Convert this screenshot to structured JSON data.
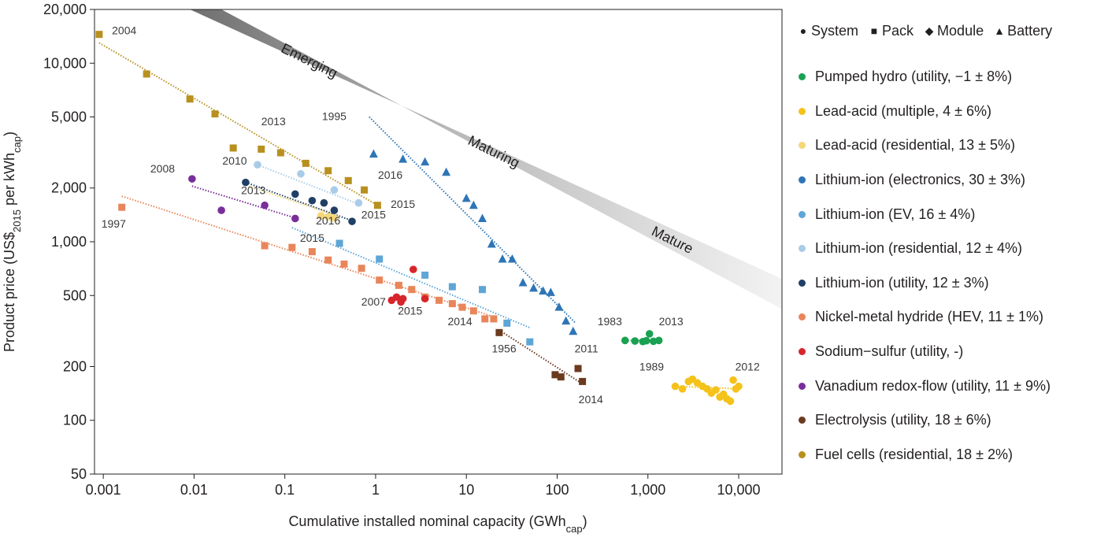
{
  "chart_data": {
    "type": "scatter",
    "xlabel": "Cumulative installed nominal capacity (GWh",
    "xlabel_sub": "cap",
    "xlabel_end": ")",
    "ylabel": "Product price (US$",
    "ylabel_sub1": "2015",
    "ylabel_mid": " per kWh",
    "ylabel_sub2": "cap",
    "ylabel_end": ")",
    "x_scale": "log",
    "y_scale": "log",
    "xlim": [
      0.0008,
      30000
    ],
    "ylim": [
      50,
      20000
    ],
    "x_ticks": [
      {
        "value": 0.001,
        "label": "0.001"
      },
      {
        "value": 0.01,
        "label": "0.01"
      },
      {
        "value": 0.1,
        "label": "0.1"
      },
      {
        "value": 1,
        "label": "1"
      },
      {
        "value": 10,
        "label": "10"
      },
      {
        "value": 100,
        "label": "100"
      },
      {
        "value": 1000,
        "label": "1,000"
      },
      {
        "value": 10000,
        "label": "10,000"
      }
    ],
    "y_ticks": [
      {
        "value": 50,
        "label": "50"
      },
      {
        "value": 100,
        "label": "100"
      },
      {
        "value": 200,
        "label": "200"
      },
      {
        "value": 500,
        "label": "500"
      },
      {
        "value": 1000,
        "label": "1,000"
      },
      {
        "value": 2000,
        "label": "2,000"
      },
      {
        "value": 5000,
        "label": "5,000"
      },
      {
        "value": 10000,
        "label": "10,000"
      },
      {
        "value": 20000,
        "label": "20,000"
      }
    ],
    "grid": false,
    "legend_position": "right",
    "marker_legend": [
      {
        "shape": "circle",
        "label": "System"
      },
      {
        "shape": "square",
        "label": "Pack"
      },
      {
        "shape": "diamond",
        "label": "Module"
      },
      {
        "shape": "triangle",
        "label": "Battery"
      }
    ],
    "maturity_band": {
      "labels": [
        "Emerging",
        "Maturing",
        "Mature"
      ],
      "upper_edge": [
        [
          0.009,
          20000
        ],
        [
          30000,
          620
        ]
      ],
      "lower_edge": [
        [
          0.02,
          20000
        ],
        [
          30000,
          420
        ]
      ]
    },
    "series": [
      {
        "name": "Pumped hydro (utility, −1 ± 8%)",
        "color": "#1aa152",
        "marker": "circle",
        "x": [
          560,
          720,
          880,
          960,
          1040,
          1150,
          1320
        ],
        "y": [
          280,
          278,
          276,
          279,
          305,
          277,
          280
        ],
        "trend": [
          [
            560,
            280
          ],
          [
            1350,
            280
          ]
        ]
      },
      {
        "name": "Lead-acid (multiple, 4 ± 6%)",
        "color": "#f5c21a",
        "marker": "circle",
        "x": [
          2000,
          2400,
          2800,
          3100,
          3500,
          4000,
          4500,
          5000,
          5600,
          6200,
          6800,
          7400,
          8100,
          8700,
          9300,
          10000
        ],
        "y": [
          155,
          150,
          165,
          170,
          162,
          155,
          150,
          142,
          148,
          135,
          140,
          132,
          128,
          168,
          150,
          155
        ],
        "trend": [
          [
            2000,
            155
          ],
          [
            10000,
            150
          ]
        ]
      },
      {
        "name": "Lead-acid (residential, 13 ± 5%)",
        "color": "#f5d77a",
        "marker": "circle",
        "x": [
          0.25,
          0.3,
          0.35
        ],
        "y": [
          1400,
          1380,
          1360
        ],
        "trend": [
          [
            0.04,
            2050
          ],
          [
            0.4,
            1380
          ]
        ]
      },
      {
        "name": "Lithium-ion (electronics, 30 ± 3%)",
        "color": "#2e75b6",
        "marker": "triangle",
        "x": [
          0.95,
          2,
          3.5,
          6,
          10,
          12,
          15,
          19,
          25,
          32,
          42,
          55,
          70,
          85,
          105,
          125,
          150
        ],
        "y": [
          3100,
          2900,
          2800,
          2450,
          1750,
          1600,
          1350,
          970,
          800,
          800,
          590,
          550,
          530,
          520,
          430,
          360,
          315
        ],
        "trend": [
          [
            0.85,
            5000
          ],
          [
            160,
            350
          ]
        ]
      },
      {
        "name": "Lithium-ion (EV, 16 ± 4%)",
        "color": "#5ea6d6",
        "marker": "square",
        "x": [
          0.4,
          1.1,
          3.5,
          7,
          15,
          28,
          50
        ],
        "y": [
          980,
          800,
          650,
          560,
          540,
          350,
          275
        ],
        "trend": [
          [
            0.12,
            1200
          ],
          [
            50,
            330
          ]
        ]
      },
      {
        "name": "Lithium-ion (residential, 12 ± 4%)",
        "color": "#a9cce8",
        "marker": "circle",
        "x": [
          0.05,
          0.15,
          0.35,
          0.65
        ],
        "y": [
          2700,
          2400,
          1950,
          1650
        ],
        "trend": [
          [
            0.05,
            2700
          ],
          [
            0.7,
            1600
          ]
        ]
      },
      {
        "name": "Lithium-ion (utility, 12 ± 3%)",
        "color": "#1f3f66",
        "marker": "circle",
        "x": [
          0.037,
          0.13,
          0.2,
          0.27,
          0.35,
          0.55
        ],
        "y": [
          2150,
          1850,
          1700,
          1650,
          1500,
          1300
        ],
        "trend": [
          [
            0.037,
            2150
          ],
          [
            0.58,
            1300
          ]
        ]
      },
      {
        "name": "Nickel-metal hydride (HEV, 11 ± 1%)",
        "color": "#e8865a",
        "marker": "square",
        "x": [
          0.0016,
          0.06,
          0.12,
          0.2,
          0.3,
          0.45,
          0.7,
          1.1,
          1.8,
          2.5,
          3.5,
          5,
          7,
          9,
          12,
          16,
          20
        ],
        "y": [
          1560,
          950,
          930,
          880,
          790,
          750,
          710,
          610,
          570,
          540,
          490,
          470,
          450,
          430,
          410,
          370,
          370
        ],
        "trend": [
          [
            0.0016,
            1800
          ],
          [
            20,
            380
          ]
        ]
      },
      {
        "name": "Sodium−sulfur (utility, -)",
        "color": "#d7262b",
        "marker": "circle",
        "x": [
          1.5,
          1.7,
          1.9,
          2.0,
          2.6,
          3.5
        ],
        "y": [
          470,
          490,
          460,
          480,
          700,
          480
        ],
        "trend": []
      },
      {
        "name": "Vanadium redox-flow (utility, 11 ± 9%)",
        "color": "#7a2e9a",
        "marker": "circle",
        "x": [
          0.0095,
          0.02,
          0.06,
          0.13
        ],
        "y": [
          2250,
          1500,
          1600,
          1350
        ],
        "trend": [
          [
            0.0095,
            2050
          ],
          [
            0.13,
            1360
          ]
        ]
      },
      {
        "name": "Electrolysis (utility, 18 ± 6%)",
        "color": "#6b3a1f",
        "marker": "square",
        "x": [
          23,
          95,
          110,
          170,
          190
        ],
        "y": [
          310,
          180,
          175,
          195,
          165
        ],
        "trend": [
          [
            23,
            320
          ],
          [
            190,
            160
          ]
        ]
      },
      {
        "name": "Fuel cells (residential, 18 ± 2%)",
        "color": "#b8901f",
        "marker": "square",
        "x": [
          0.0009,
          0.003,
          0.009,
          0.017,
          0.027,
          0.055,
          0.09,
          0.17,
          0.3,
          0.5,
          0.75,
          1.05
        ],
        "y": [
          14500,
          8700,
          6300,
          5200,
          3350,
          3300,
          3150,
          2750,
          2500,
          2200,
          1950,
          1600
        ],
        "trend": [
          [
            0.0009,
            13000
          ],
          [
            1.05,
            1600
          ]
        ]
      }
    ],
    "annotations": [
      {
        "text": "2004",
        "x": 0.0017,
        "y": 14500
      },
      {
        "text": "2013",
        "x": 0.075,
        "y": 4500
      },
      {
        "text": "2008",
        "x": 0.0045,
        "y": 2450
      },
      {
        "text": "2010",
        "x": 0.028,
        "y": 2700
      },
      {
        "text": "2013",
        "x": 0.045,
        "y": 1850
      },
      {
        "text": "2016",
        "x": 1.45,
        "y": 2250
      },
      {
        "text": "2015",
        "x": 2.0,
        "y": 1550
      },
      {
        "text": "2016",
        "x": 0.3,
        "y": 1250
      },
      {
        "text": "2015",
        "x": 0.95,
        "y": 1350
      },
      {
        "text": "2015",
        "x": 0.2,
        "y": 1000
      },
      {
        "text": "1997",
        "x": 0.0013,
        "y": 1200
      },
      {
        "text": "1995",
        "x": 0.35,
        "y": 4800
      },
      {
        "text": "2007",
        "x": 0.95,
        "y": 440
      },
      {
        "text": "2015",
        "x": 2.4,
        "y": 390
      },
      {
        "text": "2014",
        "x": 8.5,
        "y": 340
      },
      {
        "text": "1956",
        "x": 26,
        "y": 240
      },
      {
        "text": "2011",
        "x": 210,
        "y": 240
      },
      {
        "text": "2014",
        "x": 235,
        "y": 125
      },
      {
        "text": "1983",
        "x": 380,
        "y": 340
      },
      {
        "text": "2013",
        "x": 1800,
        "y": 340
      },
      {
        "text": "1989",
        "x": 1100,
        "y": 190
      },
      {
        "text": "2012",
        "x": 12500,
        "y": 190
      }
    ]
  }
}
